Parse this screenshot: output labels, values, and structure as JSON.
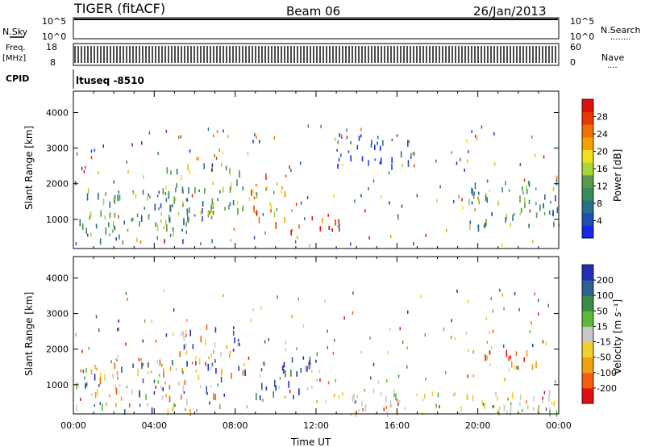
{
  "header": {
    "station": "TIGER (fitACF)",
    "beam": "Beam 06",
    "date": "26/Jan/2013"
  },
  "strip_nsky": {
    "left_label": "N.Sky",
    "ticks": [
      "10^5",
      "10^0"
    ],
    "right_ticks": [
      "10^5",
      "10^0"
    ],
    "right_label": "N.Search",
    "right_key": "........"
  },
  "strip_freq": {
    "left_label_1": "Freq.",
    "left_label_2": "[MHz]",
    "ticks": [
      "18",
      "8"
    ],
    "right_ticks": [
      "60",
      "0"
    ],
    "right_label": "Nave",
    "right_key": "...."
  },
  "strip_cpid": {
    "left_label": "CPID",
    "value": "ltuseq -8510"
  },
  "chart_data": [
    {
      "type": "heatmap",
      "name": "power",
      "xlabel": "",
      "ylabel": "Slant Range [km]",
      "xlim": [
        0,
        24
      ],
      "ylim": [
        180,
        4600
      ],
      "yticks": [
        "1000",
        "2000",
        "3000",
        "4000"
      ],
      "colorbar": {
        "label": "Power [dB]",
        "ticks": [
          "4",
          "8",
          "12",
          "16",
          "20",
          "24",
          "28"
        ],
        "colors": [
          "#1428e6",
          "#1e4fb4",
          "#27708a",
          "#3a8a5a",
          "#5a9a4a",
          "#a6d638",
          "#f0e020",
          "#f4a000",
          "#f07000",
          "#e83a00",
          "#e01010"
        ]
      },
      "regions": [
        {
          "t0": 0.0,
          "t1": 7.0,
          "r0": 400,
          "r1": 1900,
          "level": "low-mid"
        },
        {
          "t0": 4.5,
          "t1": 8.5,
          "r0": 1200,
          "r1": 2700,
          "level": "mid"
        },
        {
          "t0": 8.5,
          "t1": 10.5,
          "r0": 900,
          "r1": 2300,
          "level": "mid-high"
        },
        {
          "t0": 10.0,
          "t1": 13.3,
          "r0": 700,
          "r1": 1100,
          "level": "high"
        },
        {
          "t0": 13.0,
          "t1": 17.0,
          "r0": 2500,
          "r1": 3500,
          "level": "low"
        },
        {
          "t0": 19.5,
          "t1": 24.0,
          "r0": 800,
          "r1": 2200,
          "level": "low-mid"
        }
      ]
    },
    {
      "type": "heatmap",
      "name": "velocity",
      "xlabel": "Time UT",
      "ylabel": "Slant Range [km]",
      "xlim": [
        0,
        24
      ],
      "ylim": [
        180,
        4600
      ],
      "xticks": [
        "00:00",
        "04:00",
        "08:00",
        "12:00",
        "16:00",
        "20:00",
        "00:00"
      ],
      "yticks": [
        "1000",
        "2000",
        "3000",
        "4000"
      ],
      "colorbar": {
        "label": "Velocity [m s⁻¹]",
        "ticks": [
          "200",
          "100",
          "50",
          "15",
          "-15",
          "-50",
          "-100",
          "-200"
        ],
        "colors": [
          "#1f2fb8",
          "#2f6090",
          "#3c8a4a",
          "#5fb83a",
          "#c8c8c8",
          "#f0d030",
          "#f0a010",
          "#f06010",
          "#e01010"
        ]
      },
      "regions": [
        {
          "t0": 0.0,
          "t1": 7.5,
          "r0": 300,
          "r1": 1800,
          "level": "mixed"
        },
        {
          "t0": 5.0,
          "t1": 8.5,
          "r0": 1300,
          "r1": 2700,
          "level": "positive-negative"
        },
        {
          "t0": 9.0,
          "t1": 12.5,
          "r0": 700,
          "r1": 1800,
          "level": "positive"
        },
        {
          "t0": 20.0,
          "t1": 23.0,
          "r0": 1500,
          "r1": 2000,
          "level": "negative"
        },
        {
          "t0": 13.0,
          "t1": 24.0,
          "r0": 200,
          "r1": 900,
          "level": "near-zero"
        }
      ]
    }
  ]
}
